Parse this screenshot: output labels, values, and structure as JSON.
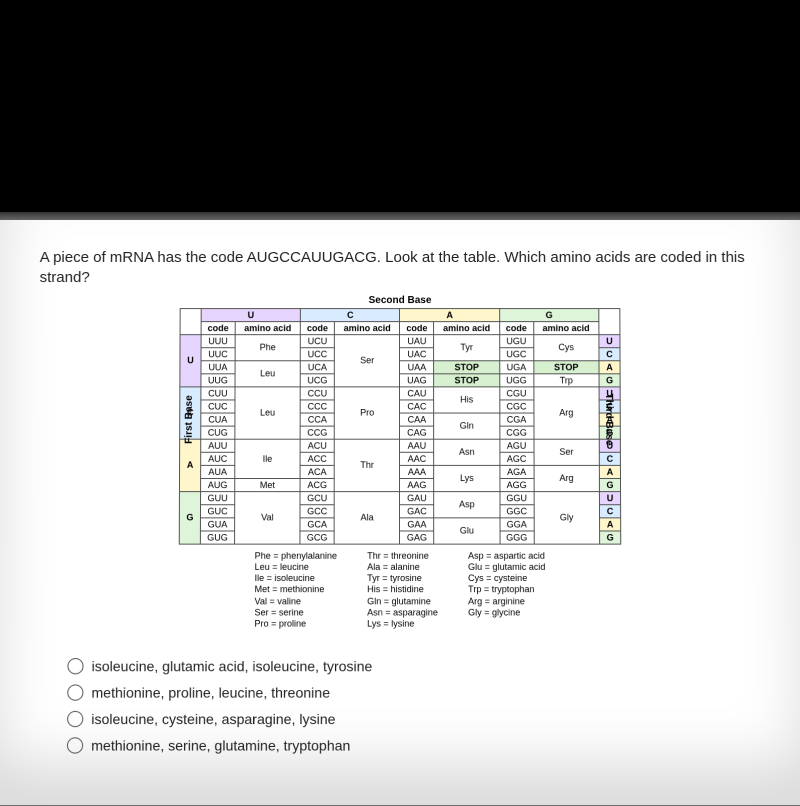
{
  "question": "A piece of mRNA has the code AUGCCAUUGACG. Look at the table. Which amino acids are coded in this strand?",
  "labels": {
    "second": "Second Base",
    "first": "First Base",
    "third": "Third Base"
  },
  "second_bases": [
    "U",
    "C",
    "A",
    "G"
  ],
  "first_bases": [
    "U",
    "C",
    "A",
    "G"
  ],
  "third_bases": [
    "U",
    "C",
    "A",
    "G"
  ],
  "col_hdr": {
    "code": "code",
    "aa": "amino acid"
  },
  "colors": {
    "header_U": "#e6d5ff",
    "header_C": "#d9ecff",
    "header_A": "#fff6cc",
    "header_G": "#dff5d9",
    "first_U": "#e6d5ff",
    "first_C": "#d9ecff",
    "first_A": "#fff6cc",
    "first_G": "#dff5d9",
    "third_U": "#e6d5ff",
    "third_C": "#d9ecff",
    "third_A": "#fff6cc",
    "third_G": "#dff5d9",
    "stop_bg": "#d7f0d0"
  },
  "table": {
    "U": {
      "U": {
        "codes": [
          "UUU",
          "UUC",
          "UUA",
          "UUG"
        ],
        "aas": [
          "Phe",
          "Phe",
          "Leu",
          "Leu"
        ],
        "spans": [
          2,
          2
        ]
      },
      "C": {
        "codes": [
          "UCU",
          "UCC",
          "UCA",
          "UCG"
        ],
        "aas": [
          "Ser",
          "Ser",
          "Ser",
          "Ser"
        ],
        "spans": [
          4
        ]
      },
      "A": {
        "codes": [
          "UAU",
          "UAC",
          "UAA",
          "UAG"
        ],
        "aas": [
          "Tyr",
          "Tyr",
          "STOP",
          "STOP"
        ],
        "spans": [
          2,
          1,
          1
        ]
      },
      "G": {
        "codes": [
          "UGU",
          "UGC",
          "UGA",
          "UGG"
        ],
        "aas": [
          "Cys",
          "Cys",
          "STOP",
          "Trp"
        ],
        "spans": [
          2,
          1,
          1
        ]
      }
    },
    "C": {
      "U": {
        "codes": [
          "CUU",
          "CUC",
          "CUA",
          "CUG"
        ],
        "aas": [
          "Leu",
          "Leu",
          "Leu",
          "Leu"
        ],
        "spans": [
          4
        ]
      },
      "C": {
        "codes": [
          "CCU",
          "CCC",
          "CCA",
          "CCG"
        ],
        "aas": [
          "Pro",
          "Pro",
          "Pro",
          "Pro"
        ],
        "spans": [
          4
        ]
      },
      "A": {
        "codes": [
          "CAU",
          "CAC",
          "CAA",
          "CAG"
        ],
        "aas": [
          "His",
          "His",
          "Gln",
          "Gln"
        ],
        "spans": [
          2,
          2
        ]
      },
      "G": {
        "codes": [
          "CGU",
          "CGC",
          "CGA",
          "CGG"
        ],
        "aas": [
          "Arg",
          "Arg",
          "Arg",
          "Arg"
        ],
        "spans": [
          4
        ]
      }
    },
    "A": {
      "U": {
        "codes": [
          "AUU",
          "AUC",
          "AUA",
          "AUG"
        ],
        "aas": [
          "Ile",
          "Ile",
          "Ile",
          "Met"
        ],
        "spans": [
          3,
          1
        ]
      },
      "C": {
        "codes": [
          "ACU",
          "ACC",
          "ACA",
          "ACG"
        ],
        "aas": [
          "Thr",
          "Thr",
          "Thr",
          "Thr"
        ],
        "spans": [
          4
        ]
      },
      "A": {
        "codes": [
          "AAU",
          "AAC",
          "AAA",
          "AAG"
        ],
        "aas": [
          "Asn",
          "Asn",
          "Lys",
          "Lys"
        ],
        "spans": [
          2,
          2
        ]
      },
      "G": {
        "codes": [
          "AGU",
          "AGC",
          "AGA",
          "AGG"
        ],
        "aas": [
          "Ser",
          "Ser",
          "Arg",
          "Arg"
        ],
        "spans": [
          2,
          2
        ]
      }
    },
    "G": {
      "U": {
        "codes": [
          "GUU",
          "GUC",
          "GUA",
          "GUG"
        ],
        "aas": [
          "Val",
          "Val",
          "Val",
          "Val"
        ],
        "spans": [
          4
        ]
      },
      "C": {
        "codes": [
          "GCU",
          "GCC",
          "GCA",
          "GCG"
        ],
        "aas": [
          "Ala",
          "Ala",
          "Ala",
          "Ala"
        ],
        "spans": [
          4
        ]
      },
      "A": {
        "codes": [
          "GAU",
          "GAC",
          "GAA",
          "GAG"
        ],
        "aas": [
          "Asp",
          "Asp",
          "Glu",
          "Glu"
        ],
        "spans": [
          2,
          2
        ]
      },
      "G": {
        "codes": [
          "GGU",
          "GGC",
          "GGA",
          "GGG"
        ],
        "aas": [
          "Gly",
          "Gly",
          "Gly",
          "Gly"
        ],
        "spans": [
          4
        ]
      }
    }
  },
  "legend": [
    "Phe = phenylalanine\nLeu = leucine\nIle = isoleucine\nMet = methionine\nVal = valine\nSer = serine\nPro = proline",
    "Thr = threonine\nAla = alanine\nTyr = tyrosine\nHis = histidine\nGln = glutamine\nAsn = asparagine\nLys = lysine",
    "Asp = aspartic acid\nGlu = glutamic acid\nCys = cysteine\nTrp = tryptophan\nArg = arginine\nGly = glycine"
  ],
  "options": [
    "isoleucine, glutamic acid, isoleucine, tyrosine",
    "methionine, proline, leucine, threonine",
    "isoleucine, cysteine, asparagine, lysine",
    "methionine, serine, glutamine, tryptophan"
  ]
}
